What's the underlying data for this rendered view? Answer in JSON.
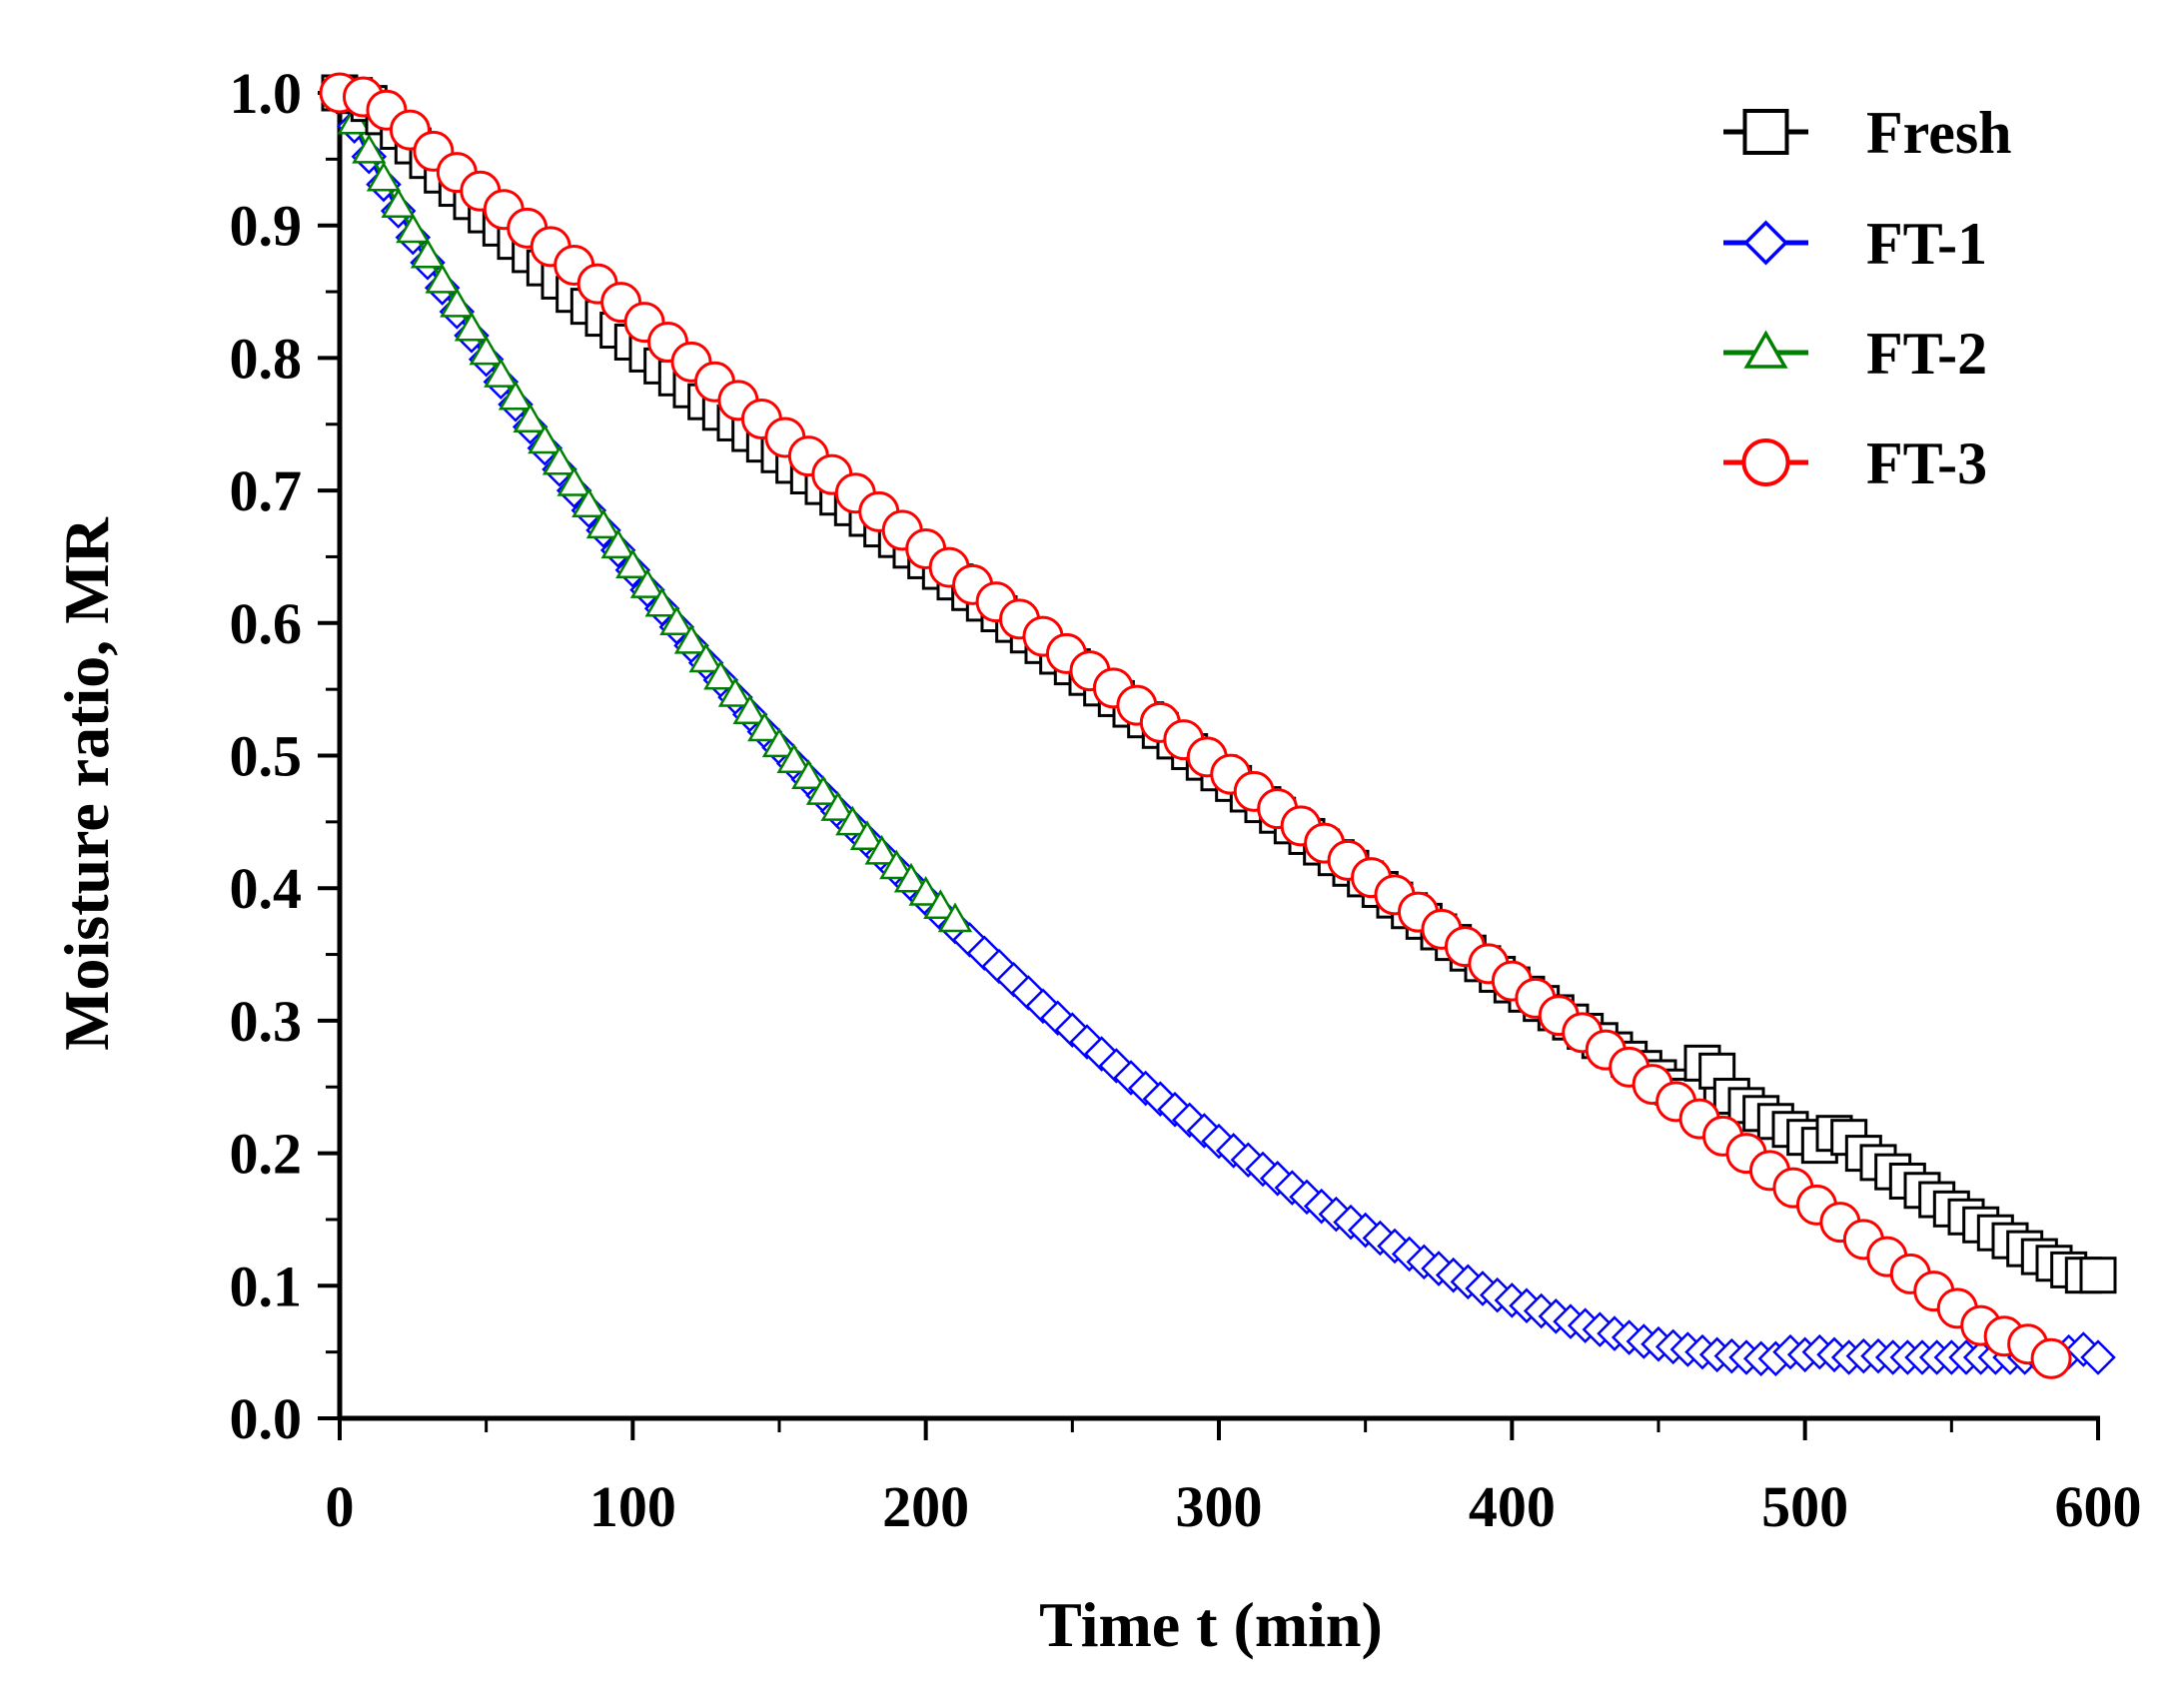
{
  "chart_data": {
    "type": "line",
    "title": "",
    "xlabel": "Time t (min)",
    "ylabel": "Moisture ratio, MR",
    "xlim": [
      0,
      600
    ],
    "ylim": [
      0.0,
      1.0
    ],
    "x_ticks": [
      "0",
      "100",
      "200",
      "300",
      "400",
      "500",
      "600"
    ],
    "y_ticks": [
      "0.0",
      "0.1",
      "0.2",
      "0.3",
      "0.4",
      "0.5",
      "0.6",
      "0.7",
      "0.8",
      "0.9",
      "1.0"
    ],
    "grid": false,
    "legend_position": "top-right",
    "series": [
      {
        "name": "Fresh",
        "color": "#000000",
        "marker": "square",
        "x": [
          0,
          5,
          10,
          15,
          20,
          25,
          30,
          35,
          40,
          45,
          50,
          55,
          60,
          65,
          70,
          75,
          80,
          85,
          90,
          95,
          100,
          105,
          110,
          115,
          120,
          125,
          130,
          135,
          140,
          145,
          150,
          155,
          160,
          165,
          170,
          175,
          180,
          185,
          190,
          195,
          200,
          205,
          210,
          215,
          220,
          225,
          230,
          235,
          240,
          245,
          250,
          255,
          260,
          265,
          270,
          275,
          280,
          285,
          290,
          295,
          300,
          305,
          310,
          315,
          320,
          325,
          330,
          335,
          340,
          345,
          350,
          355,
          360,
          365,
          370,
          375,
          380,
          385,
          390,
          395,
          400,
          405,
          410,
          415,
          420,
          425,
          430,
          435,
          440,
          445,
          450,
          455,
          460,
          465,
          470,
          475,
          480,
          485,
          490,
          495,
          500,
          505,
          510,
          515,
          520,
          525,
          530,
          535,
          540,
          545,
          550,
          555,
          560,
          565,
          570,
          575,
          580,
          585,
          590,
          595,
          600
        ],
        "y": [
          1.0,
          0.998,
          0.992,
          0.982,
          0.971,
          0.96,
          0.949,
          0.938,
          0.928,
          0.918,
          0.908,
          0.898,
          0.888,
          0.878,
          0.868,
          0.858,
          0.848,
          0.839,
          0.83,
          0.821,
          0.812,
          0.803,
          0.794,
          0.785,
          0.776,
          0.767,
          0.759,
          0.751,
          0.743,
          0.735,
          0.727,
          0.719,
          0.711,
          0.703,
          0.695,
          0.687,
          0.679,
          0.671,
          0.663,
          0.655,
          0.647,
          0.639,
          0.631,
          0.623,
          0.615,
          0.607,
          0.599,
          0.591,
          0.583,
          0.575,
          0.567,
          0.559,
          0.551,
          0.543,
          0.535,
          0.527,
          0.519,
          0.511,
          0.503,
          0.495,
          0.487,
          0.479,
          0.471,
          0.463,
          0.455,
          0.447,
          0.439,
          0.431,
          0.423,
          0.415,
          0.407,
          0.399,
          0.391,
          0.383,
          0.375,
          0.367,
          0.359,
          0.351,
          0.343,
          0.335,
          0.327,
          0.32,
          0.313,
          0.306,
          0.299,
          0.292,
          0.285,
          0.278,
          0.271,
          0.264,
          0.257,
          0.25,
          0.243,
          0.268,
          0.262,
          0.243,
          0.236,
          0.23,
          0.224,
          0.218,
          0.212,
          0.206,
          0.215,
          0.212,
          0.2,
          0.193,
          0.186,
          0.179,
          0.172,
          0.165,
          0.158,
          0.152,
          0.146,
          0.14,
          0.134,
          0.128,
          0.122,
          0.117,
          0.112,
          0.108,
          0.108
        ]
      },
      {
        "name": "FT-1",
        "color": "#0000ff",
        "marker": "diamond",
        "x": [
          0,
          5,
          10,
          15,
          20,
          25,
          30,
          35,
          40,
          45,
          50,
          55,
          60,
          65,
          70,
          75,
          80,
          85,
          90,
          95,
          100,
          105,
          110,
          115,
          120,
          125,
          130,
          135,
          140,
          145,
          150,
          155,
          160,
          165,
          170,
          175,
          180,
          185,
          190,
          195,
          200,
          205,
          210,
          215,
          220,
          225,
          230,
          235,
          240,
          245,
          250,
          255,
          260,
          265,
          270,
          275,
          280,
          285,
          290,
          295,
          300,
          305,
          310,
          315,
          320,
          325,
          330,
          335,
          340,
          345,
          350,
          355,
          360,
          365,
          370,
          375,
          380,
          385,
          390,
          395,
          400,
          405,
          410,
          415,
          420,
          425,
          430,
          435,
          440,
          445,
          450,
          455,
          460,
          465,
          470,
          475,
          480,
          485,
          490,
          495,
          500,
          505,
          510,
          515,
          520,
          525,
          530,
          535,
          540,
          545,
          550,
          555,
          560,
          565,
          570,
          575,
          580,
          585,
          590,
          595,
          600
        ],
        "y": [
          1.0,
          0.975,
          0.952,
          0.931,
          0.911,
          0.891,
          0.872,
          0.853,
          0.835,
          0.817,
          0.799,
          0.782,
          0.765,
          0.748,
          0.732,
          0.716,
          0.7,
          0.685,
          0.67,
          0.655,
          0.64,
          0.625,
          0.611,
          0.597,
          0.583,
          0.57,
          0.557,
          0.544,
          0.531,
          0.518,
          0.506,
          0.494,
          0.482,
          0.47,
          0.458,
          0.447,
          0.436,
          0.425,
          0.414,
          0.403,
          0.392,
          0.381,
          0.371,
          0.361,
          0.351,
          0.341,
          0.331,
          0.321,
          0.311,
          0.302,
          0.293,
          0.284,
          0.275,
          0.266,
          0.257,
          0.249,
          0.241,
          0.233,
          0.225,
          0.217,
          0.209,
          0.202,
          0.195,
          0.188,
          0.181,
          0.174,
          0.167,
          0.16,
          0.154,
          0.148,
          0.142,
          0.136,
          0.13,
          0.124,
          0.118,
          0.113,
          0.108,
          0.103,
          0.098,
          0.093,
          0.089,
          0.085,
          0.081,
          0.077,
          0.073,
          0.07,
          0.067,
          0.064,
          0.061,
          0.058,
          0.056,
          0.054,
          0.052,
          0.05,
          0.048,
          0.047,
          0.046,
          0.045,
          0.045,
          0.05,
          0.048,
          0.05,
          0.048,
          0.046,
          0.047,
          0.047,
          0.046,
          0.046,
          0.046,
          0.046,
          0.046,
          0.046,
          0.046,
          0.046,
          0.046,
          0.046,
          0.046,
          0.046,
          0.05,
          0.052,
          0.046
        ]
      },
      {
        "name": "FT-2",
        "color": "#008000",
        "marker": "triangle",
        "x": [
          0,
          5,
          10,
          15,
          20,
          25,
          30,
          35,
          40,
          45,
          50,
          55,
          60,
          65,
          70,
          75,
          80,
          85,
          90,
          95,
          100,
          105,
          110,
          115,
          120,
          125,
          130,
          135,
          140,
          145,
          150,
          155,
          160,
          165,
          170,
          175,
          180,
          185,
          190,
          195,
          200,
          205,
          210
        ],
        "y": [
          1.0,
          0.978,
          0.956,
          0.935,
          0.915,
          0.896,
          0.877,
          0.858,
          0.84,
          0.822,
          0.804,
          0.787,
          0.77,
          0.753,
          0.737,
          0.721,
          0.705,
          0.689,
          0.673,
          0.658,
          0.643,
          0.628,
          0.614,
          0.6,
          0.586,
          0.572,
          0.559,
          0.546,
          0.533,
          0.52,
          0.508,
          0.496,
          0.484,
          0.472,
          0.46,
          0.449,
          0.438,
          0.427,
          0.416,
          0.406,
          0.396,
          0.386,
          0.376
        ]
      },
      {
        "name": "FT-3",
        "color": "#ff0000",
        "marker": "circle",
        "x": [
          0,
          8,
          16,
          24,
          32,
          40,
          48,
          56,
          64,
          72,
          80,
          88,
          96,
          104,
          112,
          120,
          128,
          136,
          144,
          152,
          160,
          168,
          176,
          184,
          192,
          200,
          208,
          216,
          224,
          232,
          240,
          248,
          256,
          264,
          272,
          280,
          288,
          296,
          304,
          312,
          320,
          328,
          336,
          344,
          352,
          360,
          368,
          376,
          384,
          392,
          400,
          408,
          416,
          424,
          432,
          440,
          448,
          456,
          464,
          472,
          480,
          488,
          496,
          504,
          512,
          520,
          528,
          536,
          544,
          552,
          560,
          568,
          576,
          584
        ],
        "y": [
          1.0,
          0.997,
          0.987,
          0.972,
          0.956,
          0.94,
          0.926,
          0.912,
          0.898,
          0.884,
          0.87,
          0.856,
          0.842,
          0.827,
          0.812,
          0.797,
          0.782,
          0.768,
          0.754,
          0.74,
          0.726,
          0.712,
          0.698,
          0.684,
          0.67,
          0.656,
          0.642,
          0.629,
          0.616,
          0.603,
          0.59,
          0.577,
          0.564,
          0.551,
          0.538,
          0.525,
          0.512,
          0.499,
          0.486,
          0.473,
          0.46,
          0.447,
          0.434,
          0.421,
          0.408,
          0.395,
          0.382,
          0.369,
          0.356,
          0.343,
          0.33,
          0.317,
          0.304,
          0.291,
          0.278,
          0.265,
          0.252,
          0.239,
          0.226,
          0.213,
          0.2,
          0.187,
          0.174,
          0.161,
          0.148,
          0.135,
          0.122,
          0.109,
          0.096,
          0.083,
          0.07,
          0.062,
          0.056,
          0.045
        ]
      }
    ]
  }
}
